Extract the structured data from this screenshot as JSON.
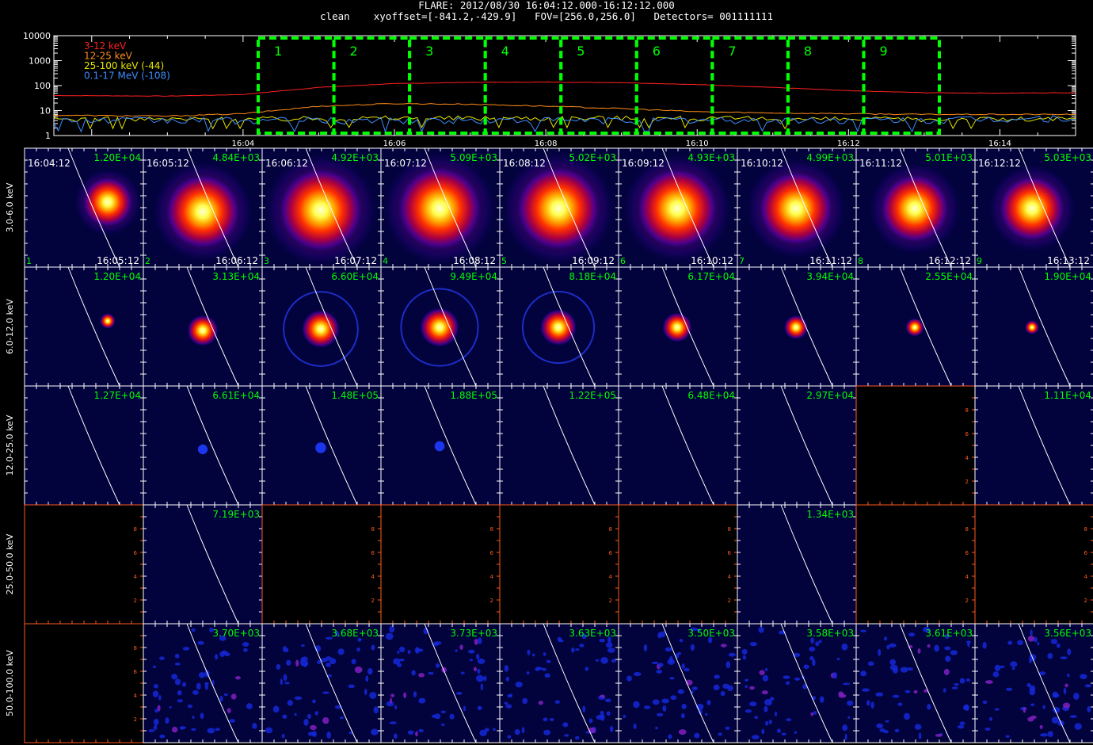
{
  "header": {
    "title": "FLARE: 2012/08/30 16:04:12.000-16:12:12.000",
    "subtitle": "clean    xyoffset=[-841.2,-429.9]   FOV=[256.0,256.0]   Detectors= 001111111"
  },
  "colors": {
    "background": "#000000",
    "band_3_12": "#ff2020",
    "band_12_25": "#ff8c1a",
    "band_25_100": "#e6e600",
    "band_01_17": "#3c8cff",
    "interval_box": "#00ff00",
    "flux_label": "#00ff00",
    "empty_axis": "#ff5a1e",
    "limb": "#ffffff"
  },
  "chart_data": [
    {
      "type": "line",
      "title": "",
      "ylabel": "",
      "yscale": "log",
      "ylim": [
        1,
        10000
      ],
      "ytick_labels": [
        "1",
        "10",
        "100",
        "1000",
        "10000"
      ],
      "x_tick_labels": [
        "16:04",
        "16:06",
        "16:08",
        "16:10",
        "16:12",
        "16:14"
      ],
      "x_ticks_min": [
        4,
        6,
        8,
        10,
        12,
        14
      ],
      "x_range_min": [
        1.5,
        15
      ],
      "legend_position": "top-left",
      "legend": [
        "3-12 keV",
        "12-25 keV",
        "25-100 keV (-44)",
        "0.1-17 MeV (-108)"
      ],
      "series": [
        {
          "name": "3-12 keV",
          "color": "#ff2020",
          "x": [
            1.5,
            3,
            4,
            5,
            6,
            7,
            8,
            9,
            10,
            11,
            12,
            13,
            14,
            15
          ],
          "y": [
            40,
            38,
            44,
            85,
            120,
            135,
            138,
            132,
            110,
            85,
            62,
            52,
            50,
            52
          ]
        },
        {
          "name": "12-25 keV",
          "color": "#ff8c1a",
          "x": [
            1.5,
            3,
            4,
            5,
            6,
            7,
            8,
            9,
            10,
            11,
            12,
            13,
            14,
            15
          ],
          "y": [
            6.5,
            6,
            7.5,
            15,
            19,
            18,
            15,
            12,
            9,
            8,
            7.5,
            7,
            7,
            7
          ]
        },
        {
          "name": "25-100 keV (-44)",
          "color": "#e6e600",
          "x": [
            1.5,
            3,
            4,
            5,
            6,
            7,
            8,
            9,
            10,
            11,
            12,
            13,
            14,
            15
          ],
          "y": [
            4.5,
            4.5,
            4.5,
            4.8,
            5,
            5,
            5,
            5,
            4.8,
            4.6,
            4.5,
            4.5,
            4.5,
            4.5
          ]
        },
        {
          "name": "0.1-17 MeV (-108)",
          "color": "#3c8cff",
          "x": [
            1.5,
            3,
            4,
            5,
            6,
            7,
            8,
            9,
            10,
            11,
            12,
            13,
            14,
            15
          ],
          "y": [
            4,
            4,
            4,
            4,
            4,
            4,
            4,
            4,
            4,
            4,
            4,
            4,
            4.5,
            5
          ]
        }
      ],
      "intervals": [
        {
          "label": "1",
          "start_min": 4.2,
          "end_min": 5.2
        },
        {
          "label": "2",
          "start_min": 5.2,
          "end_min": 6.2
        },
        {
          "label": "3",
          "start_min": 6.2,
          "end_min": 7.2
        },
        {
          "label": "4",
          "start_min": 7.2,
          "end_min": 8.2
        },
        {
          "label": "5",
          "start_min": 8.2,
          "end_min": 9.2
        },
        {
          "label": "6",
          "start_min": 9.2,
          "end_min": 10.2
        },
        {
          "label": "7",
          "start_min": 10.2,
          "end_min": 11.2
        },
        {
          "label": "8",
          "start_min": 11.2,
          "end_min": 12.2
        },
        {
          "label": "9",
          "start_min": 12.2,
          "end_min": 13.2
        }
      ]
    },
    {
      "type": "heatmap",
      "title": "",
      "rows": [
        "3.0-6.0 keV",
        "6.0-12.0 keV",
        "12.0-25.0 keV",
        "25.0-50.0 keV",
        "50.0-100.0 keV"
      ],
      "columns": [
        "1",
        "2",
        "3",
        "4",
        "5",
        "6",
        "7",
        "8",
        "9"
      ],
      "start_times": [
        "16:04:12",
        "16:05:12",
        "16:06:12",
        "16:07:12",
        "16:08:12",
        "16:09:12",
        "16:10:12",
        "16:11:12",
        "16:12:12"
      ],
      "end_times": [
        "16:05:12",
        "16:06:12",
        "16:07:12",
        "16:08:12",
        "16:09:12",
        "16:10:12",
        "16:11:12",
        "16:12:12",
        "16:13:12"
      ],
      "max_flux": [
        [
          "1.20E+04",
          "4.84E+03",
          "4.92E+03",
          "5.09E+03",
          "5.02E+03",
          "4.93E+03",
          "4.99E+03",
          "5.01E+03",
          "5.03E+03"
        ],
        [
          "1.20E+04",
          "3.13E+04",
          "6.60E+04",
          "9.49E+04",
          "8.18E+04",
          "6.17E+04",
          "3.94E+04",
          "2.55E+04",
          "1.90E+04"
        ],
        [
          "1.27E+04",
          "6.61E+04",
          "1.48E+05",
          "1.88E+05",
          "1.22E+05",
          "6.48E+04",
          "2.97E+04",
          null,
          "1.11E+04"
        ],
        [
          null,
          "7.19E+03",
          null,
          null,
          null,
          null,
          "1.34E+03",
          null,
          null
        ],
        [
          null,
          "3.70E+03",
          "3.68E+03",
          "3.73E+03",
          "3.63E+03",
          "3.50E+03",
          "3.58E+03",
          "3.61E+03",
          "3.56E+03"
        ]
      ],
      "source_intensity": [
        [
          0.45,
          0.85,
          1.0,
          1.0,
          1.0,
          0.95,
          0.85,
          0.75,
          0.7
        ],
        [
          0.15,
          0.7,
          0.95,
          1.0,
          0.9,
          0.65,
          0.45,
          0.25,
          0.1
        ],
        [
          0,
          0.2,
          0.3,
          0.22,
          0,
          0,
          0,
          null,
          0
        ],
        [
          null,
          0,
          null,
          null,
          null,
          null,
          0,
          null,
          null
        ],
        [
          null,
          0,
          0,
          0,
          0,
          0,
          0,
          0,
          0
        ]
      ],
      "empty_axis_ticks": [
        "2",
        "4",
        "6",
        "8"
      ]
    }
  ]
}
